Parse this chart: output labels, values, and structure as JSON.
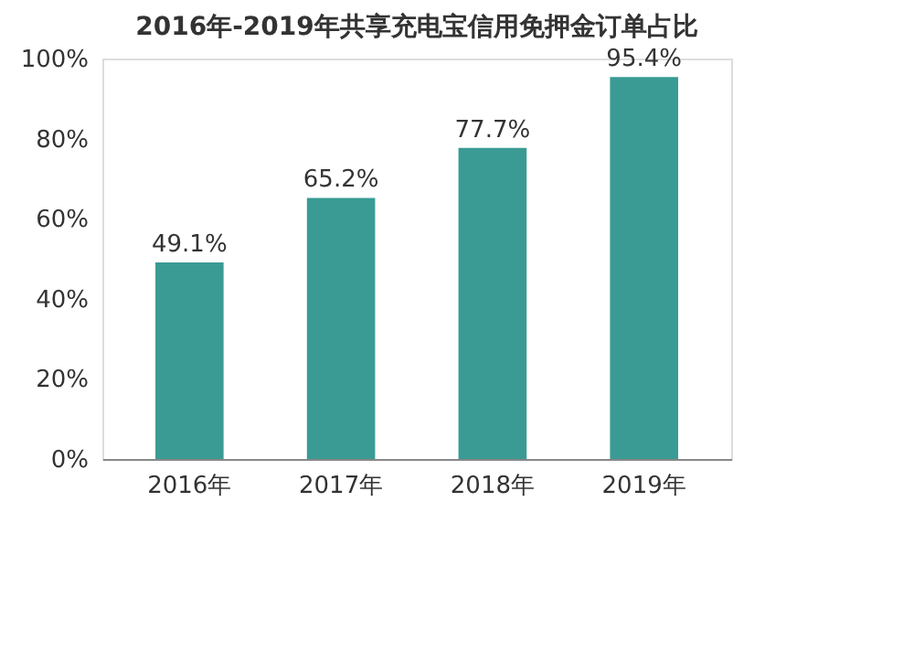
{
  "chart_data": {
    "type": "bar",
    "title": "2016年-2019年共享充电宝信用免押金订单占比",
    "categories": [
      "2016年",
      "2017年",
      "2018年",
      "2019年"
    ],
    "values": [
      49.1,
      65.2,
      77.7,
      95.4
    ],
    "value_labels": [
      "49.1%",
      "65.2%",
      "77.7%",
      "95.4%"
    ],
    "color": "#3a9b94",
    "ylim": [
      0,
      100
    ],
    "yticks": [
      {
        "value": 0,
        "label": "0%"
      },
      {
        "value": 20,
        "label": "20%"
      },
      {
        "value": 40,
        "label": "40%"
      },
      {
        "value": 60,
        "label": "60%"
      },
      {
        "value": 80,
        "label": "80%"
      },
      {
        "value": 100,
        "label": "100%"
      }
    ],
    "grid": false
  }
}
